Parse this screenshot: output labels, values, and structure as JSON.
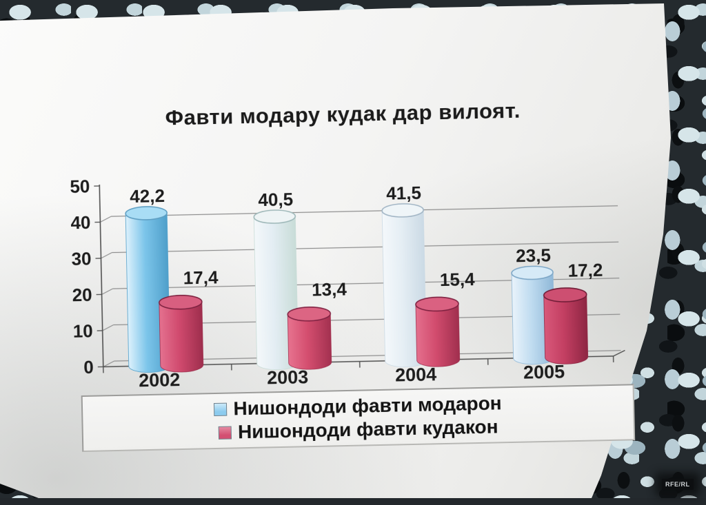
{
  "page": {
    "description": "photo of printed statistics chart on granite surface",
    "watermark": "RFE/RL"
  },
  "chart_data": {
    "type": "bar",
    "style": "3d-cylinder",
    "title": "Фавти модару кудак дар вилоят.",
    "categories": [
      "2002",
      "2003",
      "2004",
      "2005"
    ],
    "series": [
      {
        "name": "Нишондоди фавти модарон",
        "values": [
          42.2,
          40.5,
          41.5,
          23.5
        ],
        "value_labels": [
          "42,2",
          "40,5",
          "41,5",
          "23,5"
        ],
        "legend_color": "#8ccbee",
        "fills": [
          {
            "left": "#ddf1fc",
            "mid": "#7cc5ea",
            "right": "#4f9fca",
            "top": "#a9ddf5",
            "rim": "#5e9ec2"
          },
          {
            "left": "#f4f8fa",
            "mid": "#e3edf3",
            "right": "#c8dcd7",
            "top": "#eef4f5",
            "rim": "#9db7b8"
          },
          {
            "left": "#f4f8fb",
            "mid": "#e5eef4",
            "right": "#cbdae5",
            "top": "#eff5f8",
            "rim": "#a0b4c4"
          },
          {
            "left": "#e9f3fb",
            "mid": "#c0dcf0",
            "right": "#8fb8d8",
            "top": "#d6eaf7",
            "rim": "#7ca6c6"
          }
        ]
      },
      {
        "name": "Нишондоди фавти кудакон",
        "values": [
          17.4,
          13.4,
          15.4,
          17.2
        ],
        "value_labels": [
          "17,4",
          "13,4",
          "15,4",
          "17,2"
        ],
        "legend_color": "#d34f72",
        "fills": [
          {
            "left": "#e4718f",
            "mid": "#d04a6e",
            "right": "#9e2e4d",
            "top": "#d85f80",
            "rim": "#7e2240"
          },
          {
            "left": "#e7738f",
            "mid": "#d44e6f",
            "right": "#a33150",
            "top": "#dc6583",
            "rim": "#812343"
          },
          {
            "left": "#e46f8d",
            "mid": "#d24c6e",
            "right": "#a02f4e",
            "top": "#da6181",
            "rim": "#7f2241"
          },
          {
            "left": "#d8587a",
            "mid": "#c33f62",
            "right": "#8e2643",
            "top": "#cd4f71",
            "rim": "#6f1c36"
          }
        ]
      }
    ],
    "ylim": [
      0,
      50
    ],
    "yticks": [
      0,
      10,
      20,
      30,
      40,
      50
    ],
    "grid": true,
    "legend_position": "bottom"
  }
}
